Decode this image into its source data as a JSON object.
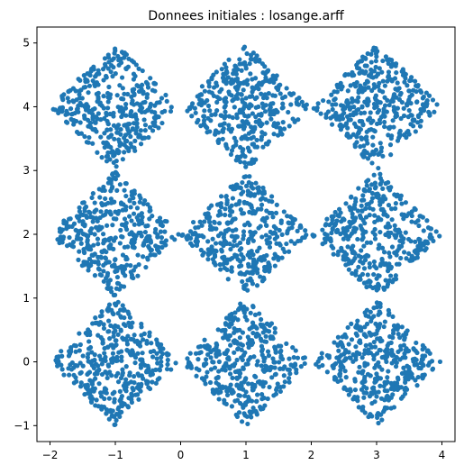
{
  "chart_data": {
    "type": "scatter",
    "title": "Donnees initiales : losange.arff",
    "xlabel": "",
    "ylabel": "",
    "xlim": [
      -2.2,
      4.2
    ],
    "ylim": [
      -1.25,
      5.25
    ],
    "x_ticks": [
      -2,
      -1,
      0,
      1,
      2,
      3,
      4
    ],
    "y_ticks": [
      -1,
      0,
      1,
      2,
      3,
      4,
      5
    ],
    "x_tick_labels": [
      "−2",
      "−1",
      "0",
      "1",
      "2",
      "3",
      "4"
    ],
    "y_tick_labels": [
      "−1",
      "0",
      "1",
      "2",
      "3",
      "4",
      "5"
    ],
    "grid": false,
    "marker_color": "#1f77b4",
    "series": [
      {
        "shape": "diamond",
        "clusters": [
          {
            "center": [
              -1,
              0
            ],
            "half_width": 1
          },
          {
            "center": [
              1,
              0
            ],
            "half_width": 1
          },
          {
            "center": [
              3,
              0
            ],
            "half_width": 1
          },
          {
            "center": [
              -1,
              2
            ],
            "half_width": 1
          },
          {
            "center": [
              1,
              2
            ],
            "half_width": 1
          },
          {
            "center": [
              3,
              2
            ],
            "half_width": 1
          },
          {
            "center": [
              -1,
              4
            ],
            "half_width": 1
          },
          {
            "center": [
              1,
              4
            ],
            "half_width": 1
          },
          {
            "center": [
              3,
              4
            ],
            "half_width": 1
          }
        ],
        "points_per_cluster": 380
      }
    ]
  }
}
